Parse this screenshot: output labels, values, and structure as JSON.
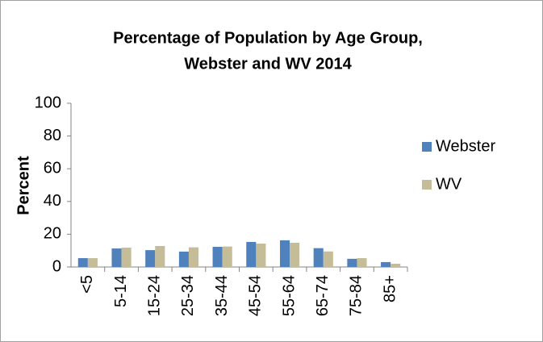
{
  "chart_data": {
    "type": "bar",
    "title": [
      "Percentage of Population by Age Group,",
      "Webster and WV 2014"
    ],
    "y_label": "Percent",
    "categories": [
      "<5",
      "5-14",
      "15-24",
      "25-34",
      "35-44",
      "45-54",
      "55-64",
      "65-74",
      "75-84",
      "85+"
    ],
    "series": [
      {
        "name": "Webster",
        "color": "#4f81bd",
        "values": [
          5.4,
          11.3,
          10.3,
          9.4,
          12.3,
          15.3,
          16.3,
          11.5,
          5.0,
          3.0
        ]
      },
      {
        "name": "WV",
        "color": "#c4bd97",
        "values": [
          5.4,
          11.8,
          12.8,
          12.0,
          12.5,
          14.3,
          14.8,
          9.5,
          5.4,
          2.0
        ]
      }
    ],
    "ylim": [
      0,
      100
    ],
    "yticks": [
      0,
      20,
      40,
      60,
      80,
      100
    ],
    "grid": false,
    "legend": "right"
  }
}
